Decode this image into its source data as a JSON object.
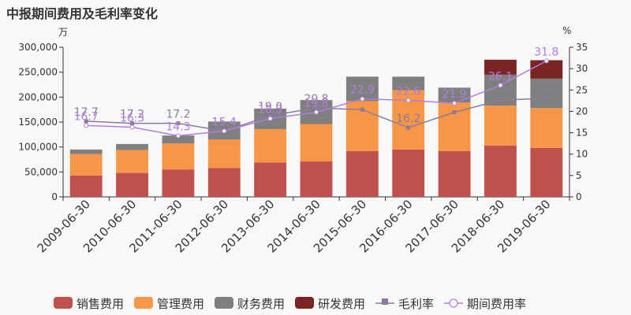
{
  "chart_data": {
    "type": "bar",
    "title": "中报期间费用及毛利率变化",
    "y_unit_left": "万",
    "y_unit_right": "%",
    "categories": [
      "2009-06-30",
      "2010-06-30",
      "2011-06-30",
      "2012-06-30",
      "2013-06-30",
      "2014-06-30",
      "2015-06-30",
      "2016-06-30",
      "2017-06-30",
      "2018-06-30",
      "2019-06-30"
    ],
    "ylim_left": [
      0,
      300000
    ],
    "yticks_left": [
      "0",
      "50,000",
      "100,000",
      "150,000",
      "200,000",
      "250,000",
      "300,000"
    ],
    "ylim_right": [
      0,
      35
    ],
    "yticks_right": [
      "0",
      "5",
      "10",
      "15",
      "20",
      "25",
      "30",
      "35"
    ],
    "stacked": true,
    "legend_position": "bottom",
    "series": [
      {
        "name": "销售费用",
        "color": "#c0504d",
        "values": [
          43000,
          48000,
          55000,
          58000,
          69000,
          71000,
          92000,
          95000,
          92000,
          103000,
          98000
        ]
      },
      {
        "name": "管理费用",
        "color": "#f79646",
        "values": [
          43000,
          46000,
          52000,
          57000,
          67000,
          75000,
          100000,
          119000,
          97000,
          80000,
          80000
        ]
      },
      {
        "name": "财务费用",
        "color": "#7f7f7f",
        "values": [
          9000,
          12000,
          16000,
          36000,
          41000,
          48000,
          49000,
          27000,
          30000,
          62000,
          59000
        ]
      },
      {
        "name": "研发费用",
        "color": "#7b2424",
        "values": [
          0,
          0,
          0,
          0,
          0,
          0,
          0,
          0,
          0,
          30000,
          37000
        ]
      }
    ],
    "line_series": [
      {
        "name": "毛利率",
        "color": "#8c7b9e",
        "axis": "right",
        "values": [
          17.7,
          17.2,
          17.2,
          15.4,
          19.0,
          20.8,
          20.4,
          16.2,
          19.8,
          22.6,
          23.1
        ],
        "labels": [
          "17.7",
          "17.2",
          "17.2",
          "15.4",
          "19.0",
          "20.8",
          "",
          "16.2",
          "",
          "",
          "23.1"
        ]
      },
      {
        "name": "期间费用率",
        "color": "#b07de0",
        "axis": "right",
        "values": [
          16.7,
          16.3,
          14.3,
          15.4,
          18.3,
          19.8,
          22.9,
          22.6,
          21.9,
          26.1,
          31.8
        ],
        "labels": [
          "16.7",
          "16.3",
          "14.3",
          "15.4",
          "18.3",
          "19.8",
          "22.9",
          "22.6",
          "21.9",
          "26.1",
          "31.8"
        ]
      }
    ]
  }
}
